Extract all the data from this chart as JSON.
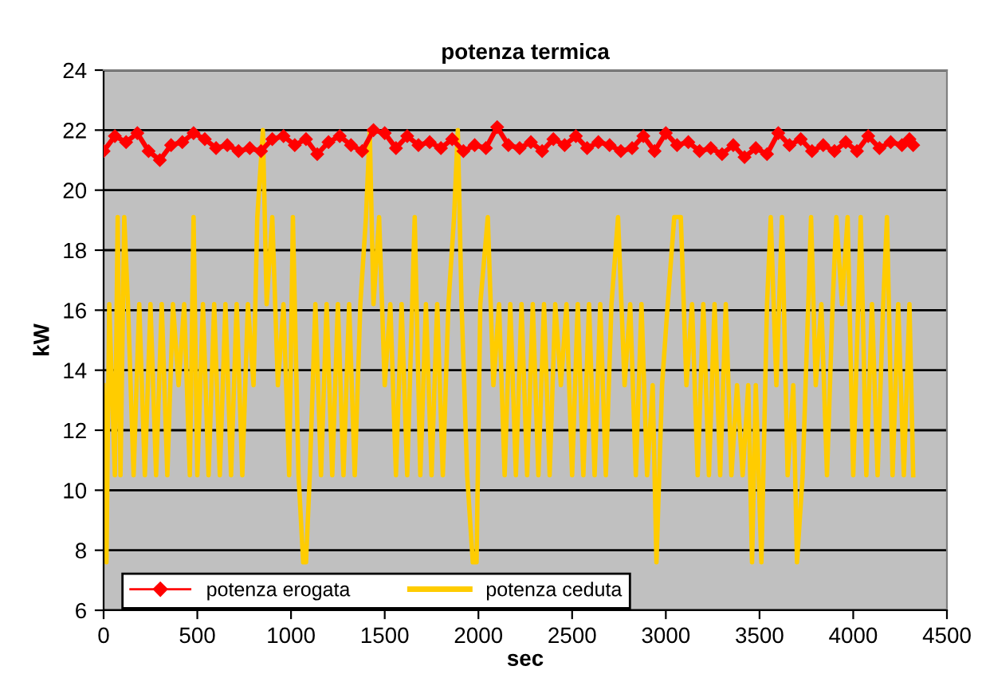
{
  "chart_data": {
    "type": "line",
    "title": "potenza termica",
    "xlabel": "sec",
    "ylabel": "kW",
    "xlim": [
      0,
      4500
    ],
    "xticks": [
      0,
      500,
      1000,
      1500,
      2000,
      2500,
      3000,
      3500,
      4000,
      4500
    ],
    "ylim": [
      6,
      24
    ],
    "yticks": [
      6,
      8,
      10,
      12,
      14,
      16,
      18,
      20,
      22,
      24
    ],
    "grid": "y",
    "legend": "bottom left",
    "series": [
      {
        "name": "potenza erogata",
        "color": "#ff0000",
        "marker": "diamond",
        "x": [
          0,
          60,
          120,
          180,
          240,
          300,
          360,
          420,
          480,
          540,
          600,
          660,
          720,
          780,
          840,
          900,
          960,
          1020,
          1080,
          1140,
          1200,
          1260,
          1320,
          1380,
          1440,
          1500,
          1560,
          1620,
          1680,
          1740,
          1800,
          1860,
          1920,
          1980,
          2040,
          2100,
          2160,
          2220,
          2280,
          2340,
          2400,
          2460,
          2520,
          2580,
          2640,
          2700,
          2760,
          2820,
          2880,
          2940,
          3000,
          3060,
          3120,
          3180,
          3240,
          3300,
          3360,
          3420,
          3480,
          3540,
          3600,
          3660,
          3720,
          3780,
          3840,
          3900,
          3960,
          4020,
          4080,
          4140,
          4200,
          4260,
          4300,
          4320
        ],
        "values": [
          21.3,
          21.8,
          21.6,
          21.9,
          21.3,
          21.0,
          21.5,
          21.6,
          21.9,
          21.7,
          21.4,
          21.5,
          21.3,
          21.4,
          21.3,
          21.7,
          21.8,
          21.5,
          21.7,
          21.2,
          21.6,
          21.8,
          21.5,
          21.3,
          22.0,
          21.9,
          21.4,
          21.8,
          21.5,
          21.6,
          21.4,
          21.7,
          21.3,
          21.5,
          21.4,
          22.1,
          21.5,
          21.4,
          21.6,
          21.3,
          21.7,
          21.5,
          21.8,
          21.4,
          21.6,
          21.5,
          21.3,
          21.4,
          21.8,
          21.3,
          21.9,
          21.5,
          21.6,
          21.3,
          21.4,
          21.2,
          21.5,
          21.1,
          21.4,
          21.2,
          21.9,
          21.5,
          21.7,
          21.3,
          21.5,
          21.3,
          21.6,
          21.3,
          21.8,
          21.4,
          21.6,
          21.5,
          21.7,
          21.5
        ]
      },
      {
        "name": "potenza ceduta",
        "color": "#ffcc00",
        "marker": "none",
        "x": [
          0,
          15,
          30,
          60,
          75,
          90,
          110,
          130,
          160,
          190,
          220,
          250,
          280,
          310,
          340,
          370,
          400,
          430,
          460,
          480,
          500,
          530,
          560,
          590,
          620,
          650,
          680,
          710,
          740,
          770,
          800,
          820,
          850,
          870,
          900,
          930,
          960,
          990,
          1010,
          1040,
          1065,
          1080,
          1100,
          1130,
          1160,
          1190,
          1220,
          1250,
          1280,
          1310,
          1340,
          1370,
          1400,
          1420,
          1440,
          1470,
          1500,
          1530,
          1560,
          1590,
          1620,
          1660,
          1690,
          1720,
          1750,
          1780,
          1810,
          1840,
          1870,
          1890,
          1910,
          1940,
          1970,
          1990,
          2010,
          2050,
          2080,
          2110,
          2140,
          2170,
          2200,
          2230,
          2260,
          2290,
          2320,
          2350,
          2380,
          2410,
          2440,
          2470,
          2500,
          2530,
          2560,
          2590,
          2620,
          2650,
          2680,
          2710,
          2745,
          2780,
          2810,
          2840,
          2870,
          2900,
          2930,
          2950,
          2980,
          3010,
          3045,
          3080,
          3110,
          3140,
          3170,
          3200,
          3230,
          3260,
          3290,
          3320,
          3350,
          3380,
          3410,
          3440,
          3460,
          3480,
          3510,
          3540,
          3560,
          3590,
          3620,
          3650,
          3680,
          3700,
          3730,
          3760,
          3775,
          3800,
          3830,
          3860,
          3890,
          3910,
          3940,
          3970,
          4000,
          4040,
          4070,
          4100,
          4130,
          4160,
          4180,
          4210,
          4240,
          4270,
          4300,
          4320
        ],
        "values": [
          13.5,
          7.6,
          16.2,
          10.5,
          19.1,
          10.5,
          19.1,
          16.2,
          10.5,
          16.2,
          10.5,
          16.2,
          10.5,
          16.2,
          10.5,
          16.2,
          13.5,
          16.2,
          10.5,
          19.1,
          10.5,
          16.2,
          10.5,
          16.2,
          10.5,
          16.2,
          10.5,
          16.2,
          10.5,
          16.2,
          13.5,
          19.1,
          22,
          16.2,
          19.1,
          13.5,
          16.2,
          10.5,
          19.1,
          10.5,
          7.6,
          7.6,
          10.5,
          16.2,
          10.5,
          16.2,
          10.5,
          16.2,
          10.5,
          16.2,
          10.5,
          16.2,
          19.1,
          22,
          16.2,
          19.1,
          13.5,
          16.2,
          10.5,
          16.2,
          10.5,
          19.1,
          10.5,
          16.2,
          10.5,
          16.2,
          10.5,
          16.2,
          19.1,
          22,
          16.2,
          10.5,
          7.6,
          7.6,
          16.2,
          19.1,
          13.5,
          16.2,
          10.5,
          16.2,
          10.5,
          16.2,
          10.5,
          16.2,
          10.5,
          16.2,
          10.5,
          16.2,
          13.5,
          16.2,
          10.5,
          16.2,
          10.5,
          16.2,
          10.5,
          16.2,
          10.5,
          16.2,
          19.1,
          13.5,
          16.2,
          10.5,
          16.2,
          10.5,
          13.5,
          7.6,
          13.5,
          16.2,
          19.1,
          19.1,
          13.5,
          16.2,
          10.5,
          16.2,
          10.5,
          16.2,
          10.5,
          16.2,
          10.5,
          13.5,
          10.5,
          13.5,
          7.6,
          13.5,
          7.6,
          16.2,
          19.1,
          13.5,
          19.1,
          10.5,
          13.5,
          7.6,
          10.5,
          16.2,
          19.1,
          13.5,
          16.2,
          10.5,
          16.2,
          19.1,
          16.2,
          19.1,
          10.5,
          19.1,
          10.5,
          16.2,
          10.5,
          16.2,
          19.1,
          10.5,
          16.2,
          10.5,
          16.2,
          10.5
        ]
      }
    ]
  }
}
